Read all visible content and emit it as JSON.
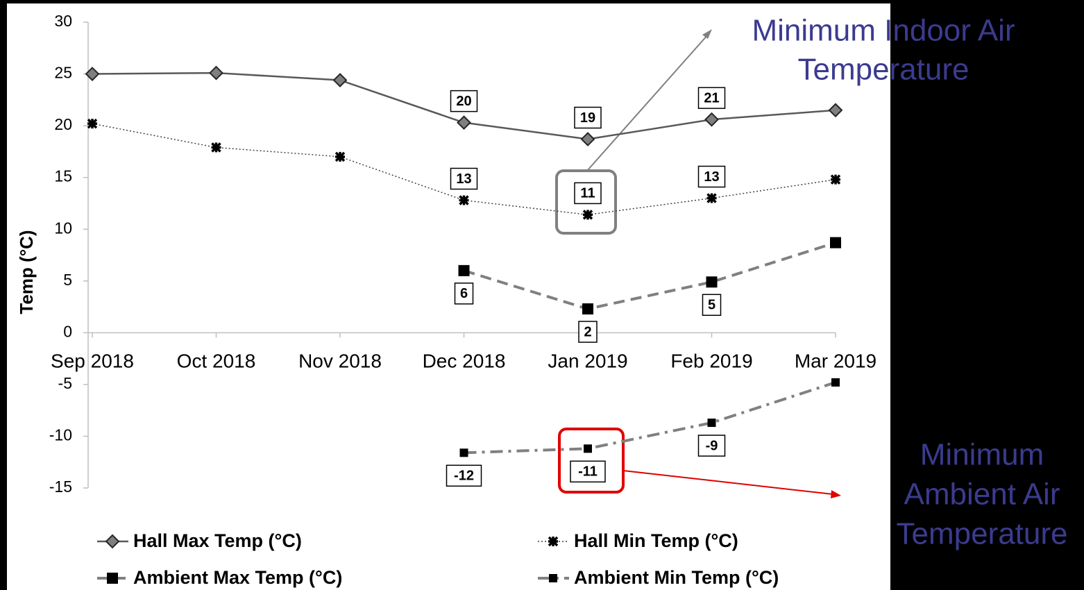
{
  "chart_data": {
    "type": "line",
    "y_title": "Temp (°C)",
    "categories": [
      "Sep 2018",
      "Oct 2018",
      "Nov 2018",
      "Dec 2018",
      "Jan 2019",
      "Feb 2019",
      "Mar 2019"
    ],
    "ylim": [
      -15,
      30
    ],
    "yticks": [
      30,
      25,
      20,
      15,
      10,
      5,
      0,
      -5,
      -10,
      -15
    ],
    "grid": false,
    "series": [
      {
        "name": "Hall Max Temp (°C)",
        "color": "#595959",
        "line_style": "solid",
        "marker": "diamond",
        "label_side": "above",
        "values": [
          25,
          25.1,
          24.4,
          20.3,
          18.7,
          20.6,
          21.5
        ],
        "value_labels": [
          null,
          null,
          null,
          "20",
          "19",
          "21",
          null
        ]
      },
      {
        "name": "Hall Min Temp (°C)",
        "color": "#404040",
        "line_style": "dotted",
        "marker": "star",
        "label_side": "above",
        "values": [
          20.2,
          17.9,
          17.0,
          12.8,
          11.4,
          13.0,
          14.8
        ],
        "value_labels": [
          null,
          null,
          null,
          "13",
          "11",
          "13",
          null
        ]
      },
      {
        "name": "Ambient Max Temp (°C)",
        "color": "#808080",
        "line_style": "dashed",
        "marker": "square",
        "label_side": "below",
        "values": [
          null,
          null,
          null,
          6.0,
          2.3,
          4.9,
          8.7
        ],
        "value_labels": [
          null,
          null,
          null,
          "6",
          "2",
          "5",
          null
        ]
      },
      {
        "name": "Ambient Min Temp (°C)",
        "color": "#808080",
        "line_style": "dashdot",
        "marker": "small-square",
        "label_side": "below",
        "values": [
          null,
          null,
          null,
          -11.6,
          -11.2,
          -8.7,
          -4.8
        ],
        "value_labels": [
          null,
          null,
          null,
          "-12",
          "-11",
          "-9",
          null
        ]
      }
    ],
    "annotations": [
      {
        "lines": [
          "Minimum Indoor Air",
          "Temperature"
        ]
      },
      {
        "lines": [
          "Minimum",
          "Ambient Air",
          "Temperature"
        ]
      }
    ]
  }
}
